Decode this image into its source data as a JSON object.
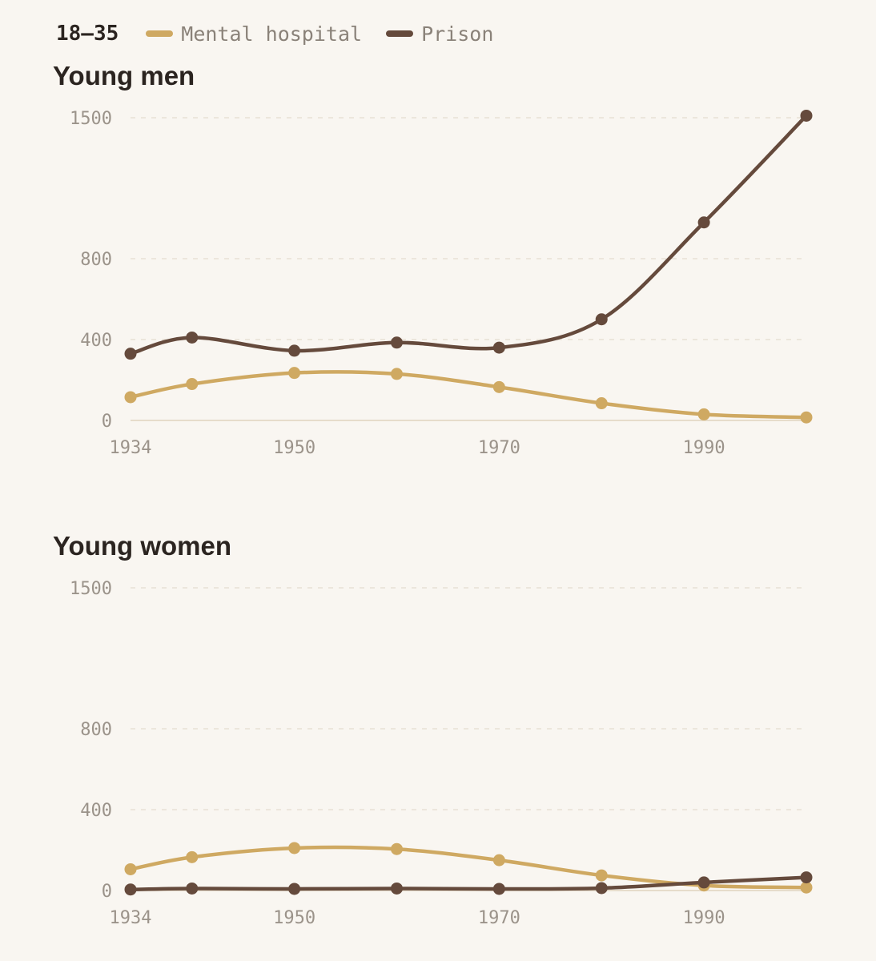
{
  "legend": {
    "age_group": "18–35",
    "series": [
      {
        "name": "Mental hospital",
        "color": "#cfa962"
      },
      {
        "name": "Prison",
        "color": "#654a3c"
      }
    ]
  },
  "chart_data": [
    {
      "type": "line",
      "title": "Young men",
      "x": [
        1934,
        1940,
        1950,
        1960,
        1970,
        1980,
        1990,
        2000
      ],
      "x_ticks": [
        1934,
        1950,
        1970,
        1990
      ],
      "y_ticks": [
        0,
        400,
        800,
        1500
      ],
      "ylim": [
        0,
        1500
      ],
      "grid": true,
      "series": [
        {
          "name": "Mental hospital",
          "color": "#cfa962",
          "values": [
            115,
            180,
            235,
            230,
            165,
            85,
            30,
            15
          ]
        },
        {
          "name": "Prison",
          "color": "#654a3c",
          "values": [
            330,
            410,
            345,
            385,
            360,
            500,
            980,
            1510
          ]
        }
      ]
    },
    {
      "type": "line",
      "title": "Young women",
      "x": [
        1934,
        1940,
        1950,
        1960,
        1970,
        1980,
        1990,
        2000
      ],
      "x_ticks": [
        1934,
        1950,
        1970,
        1990
      ],
      "y_ticks": [
        0,
        400,
        800,
        1500
      ],
      "ylim": [
        0,
        1500
      ],
      "grid": true,
      "series": [
        {
          "name": "Mental hospital",
          "color": "#cfa962",
          "values": [
            105,
            165,
            210,
            205,
            150,
            75,
            25,
            15
          ]
        },
        {
          "name": "Prison",
          "color": "#654a3c",
          "values": [
            5,
            10,
            8,
            10,
            8,
            12,
            40,
            65
          ]
        }
      ]
    }
  ]
}
